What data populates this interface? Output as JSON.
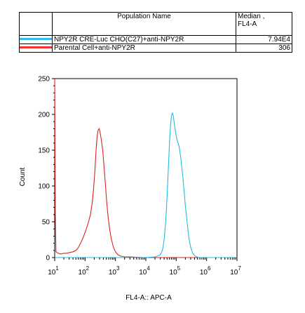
{
  "legend": {
    "header_name": "Population Name",
    "header_median": "Median ,\nFL4-A",
    "rows": [
      {
        "name": "NPY2R CRE-Luc CHO(C27)+anti-NPY2R",
        "median": "7.94E4",
        "color": "#33bbee"
      },
      {
        "name": "Parental Cell+anti-NPY2R",
        "median": "306",
        "color": "#ee3333"
      }
    ]
  },
  "chart_data": {
    "type": "line",
    "xlabel": "FL4-A:: APC-A",
    "ylabel": "Count",
    "xscale": "log",
    "xlim": [
      10,
      10000000
    ],
    "ylim": [
      0,
      250
    ],
    "y_ticks": [
      0,
      50,
      100,
      150,
      200,
      250
    ],
    "x_ticks": [
      {
        "base": "10",
        "exp": "1",
        "value": 10
      },
      {
        "base": "10",
        "exp": "2",
        "value": 100
      },
      {
        "base": "10",
        "exp": "3",
        "value": 1000
      },
      {
        "base": "10",
        "exp": "4",
        "value": 10000
      },
      {
        "base": "10",
        "exp": "5",
        "value": 100000
      },
      {
        "base": "10",
        "exp": "6",
        "value": 1000000
      },
      {
        "base": "10",
        "exp": "7",
        "value": 10000000
      }
    ],
    "series": [
      {
        "name": "Parental Cell+anti-NPY2R",
        "color": "#dd2222",
        "points": [
          [
            10,
            250
          ],
          [
            10.5,
            60
          ],
          [
            11,
            8
          ],
          [
            13,
            6
          ],
          [
            16,
            5
          ],
          [
            20,
            6
          ],
          [
            25,
            6
          ],
          [
            30,
            7
          ],
          [
            40,
            8
          ],
          [
            50,
            10
          ],
          [
            60,
            14
          ],
          [
            75,
            22
          ],
          [
            90,
            30
          ],
          [
            110,
            40
          ],
          [
            130,
            50
          ],
          [
            150,
            60
          ],
          [
            170,
            75
          ],
          [
            190,
            95
          ],
          [
            210,
            120
          ],
          [
            230,
            150
          ],
          [
            250,
            170
          ],
          [
            270,
            178
          ],
          [
            290,
            180
          ],
          [
            310,
            176
          ],
          [
            340,
            165
          ],
          [
            380,
            150
          ],
          [
            420,
            128
          ],
          [
            470,
            100
          ],
          [
            520,
            75
          ],
          [
            580,
            55
          ],
          [
            650,
            38
          ],
          [
            740,
            25
          ],
          [
            850,
            15
          ],
          [
            1000,
            8
          ],
          [
            1200,
            4
          ],
          [
            1500,
            2
          ],
          [
            2000,
            1
          ],
          [
            3000,
            1
          ],
          [
            8000,
            0
          ],
          [
            10000000,
            0
          ]
        ]
      },
      {
        "name": "NPY2R CRE-Luc CHO(C27)+anti-NPY2R",
        "color": "#22bbdd",
        "points": [
          [
            10,
            0
          ],
          [
            3000,
            0
          ],
          [
            10000,
            0
          ],
          [
            20000,
            1
          ],
          [
            28000,
            3
          ],
          [
            32000,
            6
          ],
          [
            36000,
            12
          ],
          [
            40000,
            25
          ],
          [
            45000,
            50
          ],
          [
            50000,
            85
          ],
          [
            55000,
            125
          ],
          [
            60000,
            160
          ],
          [
            65000,
            185
          ],
          [
            70000,
            198
          ],
          [
            75000,
            202
          ],
          [
            80000,
            198
          ],
          [
            88000,
            185
          ],
          [
            95000,
            175
          ],
          [
            105000,
            165
          ],
          [
            115000,
            160
          ],
          [
            125000,
            155
          ],
          [
            140000,
            140
          ],
          [
            160000,
            118
          ],
          [
            180000,
            95
          ],
          [
            200000,
            72
          ],
          [
            230000,
            48
          ],
          [
            260000,
            28
          ],
          [
            300000,
            14
          ],
          [
            350000,
            6
          ],
          [
            420000,
            2
          ],
          [
            550000,
            0
          ],
          [
            10000000,
            0
          ]
        ]
      }
    ]
  }
}
